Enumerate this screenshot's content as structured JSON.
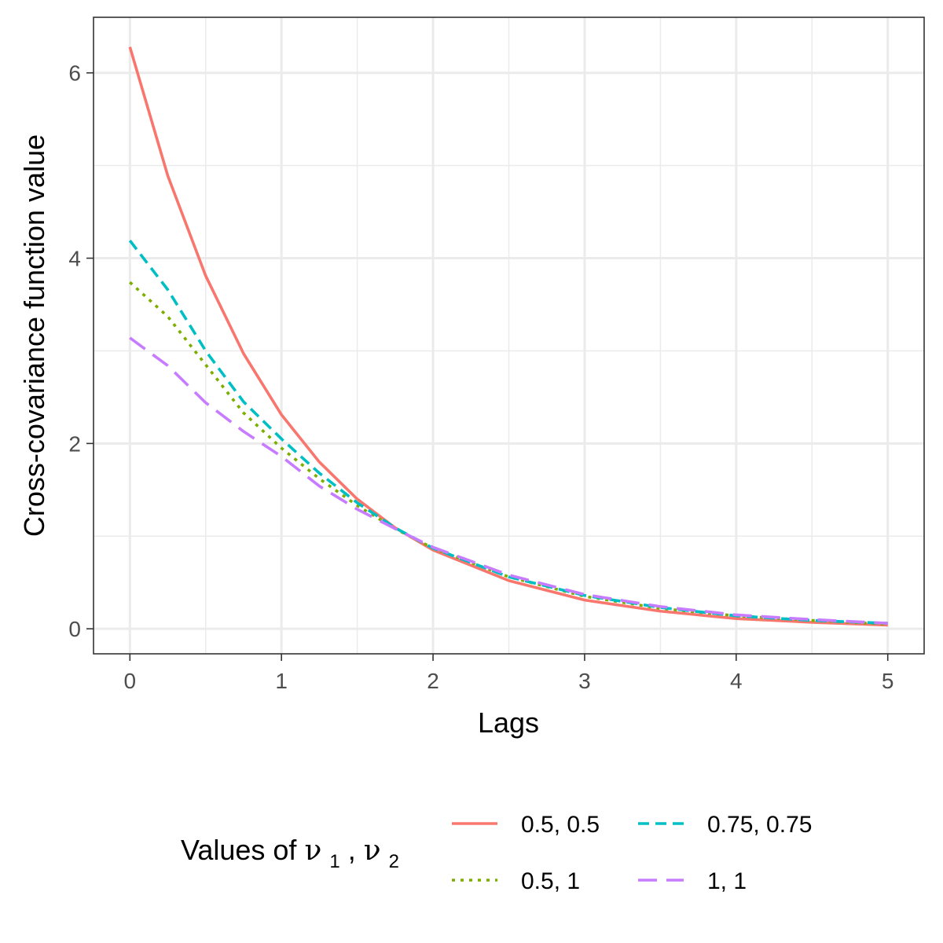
{
  "chart_data": {
    "type": "line",
    "xlabel": "Lags",
    "ylabel": "Cross-covariance function value",
    "xlim": [
      -0.24,
      5.24
    ],
    "ylim": [
      -0.27,
      6.6
    ],
    "x_ticks": [
      0,
      1,
      2,
      3,
      4,
      5
    ],
    "y_ticks": [
      0,
      2,
      4,
      6
    ],
    "x_tick_labels": [
      "0",
      "1",
      "2",
      "3",
      "4",
      "5"
    ],
    "y_tick_labels": [
      "0",
      "2",
      "4",
      "6"
    ],
    "grid": true,
    "legend": {
      "position": "bottom",
      "title_prefix": "Values of ",
      "title_symbol_1": "ν",
      "title_sub_1": "1",
      "title_sep": ", ",
      "title_symbol_2": "ν",
      "title_sub_2": "2"
    },
    "x": [
      0,
      0.25,
      0.5,
      0.75,
      1,
      1.25,
      1.5,
      1.75,
      2,
      2.5,
      3,
      3.5,
      4,
      4.5,
      5
    ],
    "series": [
      {
        "name": "0.5, 0.5",
        "color": "#F8766D",
        "dash": "solid",
        "values": [
          6.28,
          4.89,
          3.81,
          2.97,
          2.31,
          1.8,
          1.4,
          1.09,
          0.85,
          0.52,
          0.31,
          0.19,
          0.11,
          0.07,
          0.04
        ]
      },
      {
        "name": "0.5, 1",
        "color": "#7CAE00",
        "dash": "dotted",
        "values": [
          3.74,
          3.37,
          2.85,
          2.33,
          1.95,
          1.62,
          1.33,
          1.08,
          0.87,
          0.56,
          0.35,
          0.22,
          0.14,
          0.09,
          0.05
        ]
      },
      {
        "name": "0.75, 0.75",
        "color": "#00BFC4",
        "dash": "dashed",
        "values": [
          4.19,
          3.66,
          3.0,
          2.45,
          2.05,
          1.68,
          1.36,
          1.09,
          0.87,
          0.56,
          0.36,
          0.23,
          0.14,
          0.09,
          0.06
        ]
      },
      {
        "name": "1, 1",
        "color": "#C77CFF",
        "dash": "longdash",
        "values": [
          3.14,
          2.84,
          2.44,
          2.13,
          1.86,
          1.54,
          1.29,
          1.08,
          0.88,
          0.58,
          0.37,
          0.24,
          0.15,
          0.1,
          0.06
        ]
      }
    ]
  }
}
